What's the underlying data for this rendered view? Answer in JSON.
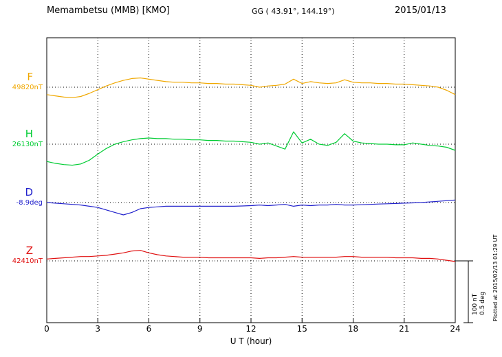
{
  "header": {
    "station": "Memambetsu (MMB)  [KMO]",
    "coords": "GG ( 43.91°, 144.19°)",
    "date": "2015/01/13"
  },
  "side": {
    "scale_nt": "100 nT",
    "scale_deg": "0.5 deg",
    "plotted": "Plotted at 2015/02/13 01:29 UT"
  },
  "footer": {
    "xlabel": "U T (hour)"
  },
  "chart_data": {
    "type": "line",
    "xlabel": "U T (hour)",
    "xlim": [
      0,
      24
    ],
    "x_ticks": [
      0,
      3,
      6,
      9,
      12,
      15,
      18,
      21,
      24
    ],
    "x_step_hours": 0.5,
    "grid": "dotted",
    "scale_bar": {
      "nT": 100,
      "deg": 0.5
    },
    "series": [
      {
        "name": "F",
        "unit": "nT",
        "color": "#f0a800",
        "baseline_label": "49820nT",
        "baseline_value": 49820,
        "offsets": [
          -12,
          -14,
          -16,
          -17,
          -15,
          -10,
          -4,
          2,
          7,
          11,
          14,
          15,
          13,
          11,
          9,
          8,
          8,
          7,
          7,
          6,
          6,
          5,
          5,
          4,
          3,
          0,
          2,
          3,
          5,
          13,
          6,
          9,
          7,
          6,
          7,
          12,
          8,
          7,
          7,
          6,
          6,
          5,
          5,
          4,
          3,
          2,
          0,
          -5,
          -12
        ]
      },
      {
        "name": "H",
        "unit": "nT",
        "color": "#00cc33",
        "baseline_label": "26130nT",
        "baseline_value": 26130,
        "offsets": [
          -28,
          -31,
          -33,
          -34,
          -32,
          -26,
          -16,
          -7,
          0,
          4,
          7,
          9,
          10,
          9,
          9,
          8,
          8,
          7,
          7,
          6,
          6,
          5,
          5,
          4,
          3,
          0,
          2,
          -3,
          -8,
          20,
          2,
          8,
          0,
          -2,
          3,
          17,
          5,
          2,
          1,
          0,
          0,
          -1,
          -1,
          2,
          0,
          -2,
          -3,
          -5,
          -10
        ]
      },
      {
        "name": "D",
        "unit": "deg",
        "color": "#2222cc",
        "baseline_label": "-8.9deg",
        "baseline_value": -8.9,
        "offsets": [
          0,
          -0.005,
          -0.01,
          -0.015,
          -0.02,
          -0.03,
          -0.04,
          -0.06,
          -0.08,
          -0.1,
          -0.08,
          -0.05,
          -0.04,
          -0.035,
          -0.03,
          -0.03,
          -0.03,
          -0.03,
          -0.03,
          -0.03,
          -0.03,
          -0.03,
          -0.03,
          -0.028,
          -0.025,
          -0.02,
          -0.025,
          -0.02,
          -0.015,
          -0.03,
          -0.02,
          -0.025,
          -0.02,
          -0.02,
          -0.015,
          -0.02,
          -0.02,
          -0.018,
          -0.015,
          -0.012,
          -0.01,
          -0.008,
          -0.005,
          -0.003,
          0,
          0.005,
          0.01,
          0.015,
          0.02
        ]
      },
      {
        "name": "Z",
        "unit": "nT",
        "color": "#e01010",
        "baseline_label": "42410nT",
        "baseline_value": 42410,
        "offsets": [
          3,
          4,
          5,
          6,
          7,
          7,
          8,
          9,
          11,
          13,
          16,
          17,
          13,
          10,
          8,
          7,
          6,
          6,
          6,
          5,
          5,
          5,
          5,
          5,
          5,
          4,
          5,
          5,
          6,
          7,
          6,
          6,
          6,
          6,
          6,
          7,
          7,
          6,
          6,
          6,
          6,
          5,
          5,
          5,
          4,
          4,
          3,
          1,
          -1
        ]
      }
    ]
  }
}
